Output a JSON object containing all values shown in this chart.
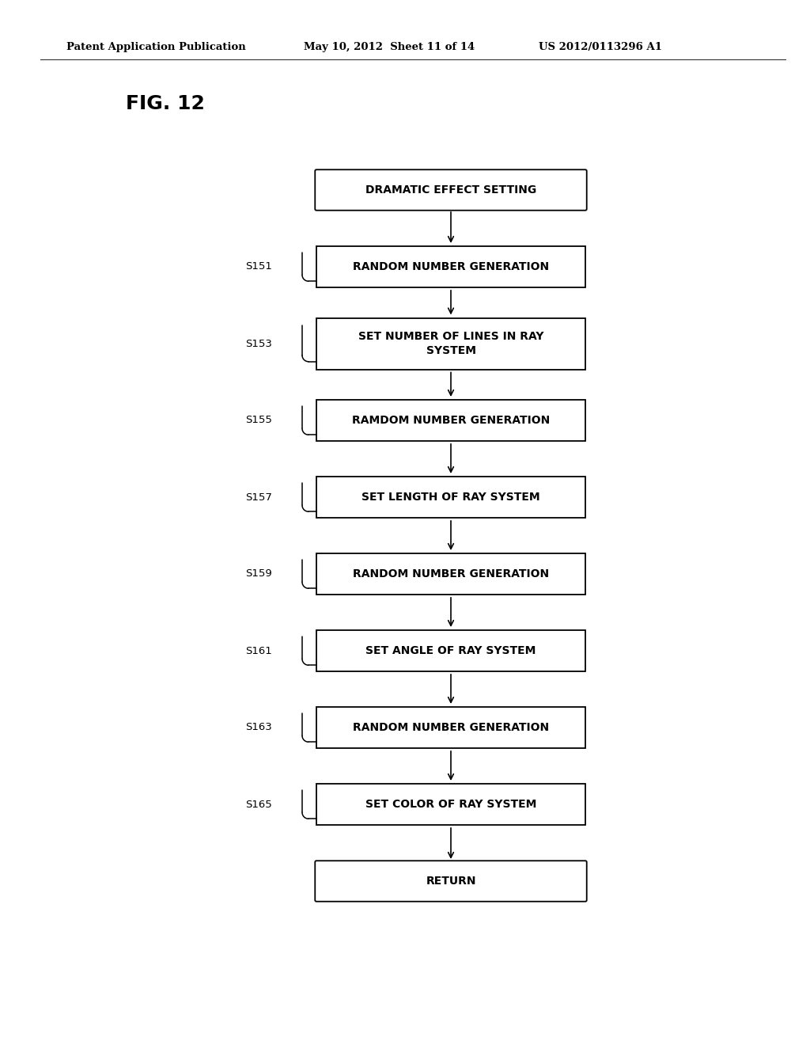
{
  "header_left": "Patent Application Publication",
  "header_mid": "May 10, 2012  Sheet 11 of 14",
  "header_right": "US 2012/0113296 A1",
  "fig_label": "FIG. 12",
  "background_color": "#ffffff",
  "text_color": "#000000",
  "box_edge_color": "#000000",
  "box_fill_color": "#ffffff",
  "nodes": [
    {
      "label": "DRAMATIC EFFECT SETTING",
      "shape": "rounded",
      "step": null
    },
    {
      "label": "RANDOM NUMBER GENERATION",
      "shape": "rect",
      "step": "S151"
    },
    {
      "label": "SET NUMBER OF LINES IN RAY\nSYSTEM",
      "shape": "rect",
      "step": "S153"
    },
    {
      "label": "RAMDOM NUMBER GENERATION",
      "shape": "rect",
      "step": "S155"
    },
    {
      "label": "SET LENGTH OF RAY SYSTEM",
      "shape": "rect",
      "step": "S157"
    },
    {
      "label": "RANDOM NUMBER GENERATION",
      "shape": "rect",
      "step": "S159"
    },
    {
      "label": "SET ANGLE OF RAY SYSTEM",
      "shape": "rect",
      "step": "S161"
    },
    {
      "label": "RANDOM NUMBER GENERATION",
      "shape": "rect",
      "step": "S163"
    },
    {
      "label": "SET COLOR OF RAY SYSTEM",
      "shape": "rect",
      "step": "S165"
    },
    {
      "label": "RETURN",
      "shape": "rounded",
      "step": null
    }
  ]
}
